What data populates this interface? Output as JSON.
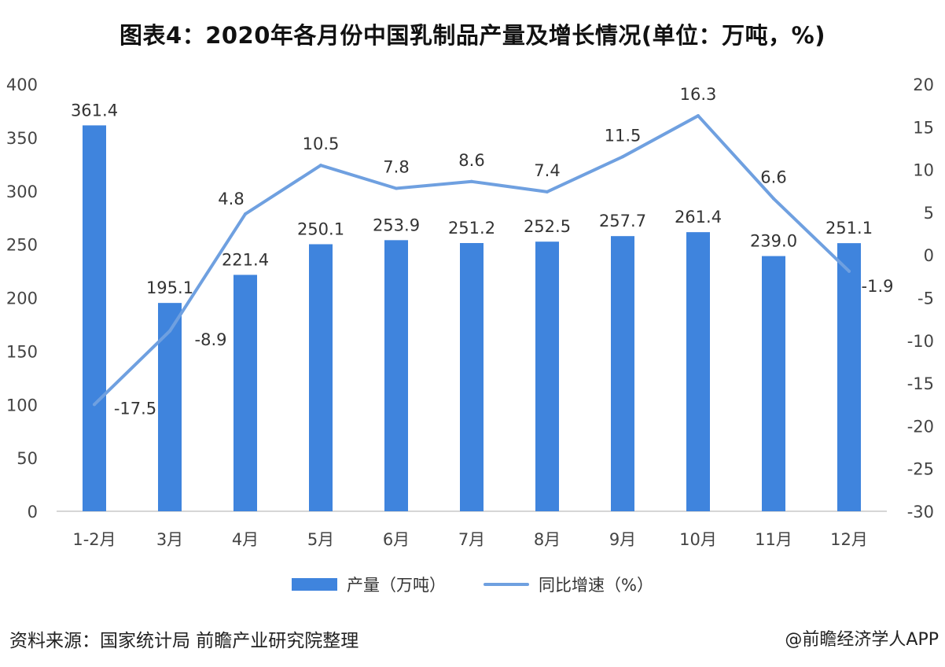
{
  "title": "图表4：2020年各月份中国乳制品产量及增长情况(单位：万吨，%)",
  "colors": {
    "bar": "#3f84dd",
    "line": "#6fa0e0",
    "axis": "#c9c9c9",
    "text": "#444444"
  },
  "chart_data": {
    "type": "bar+line",
    "categories": [
      "1-2月",
      "3月",
      "4月",
      "5月",
      "6月",
      "7月",
      "8月",
      "9月",
      "10月",
      "11月",
      "12月"
    ],
    "series": [
      {
        "name": "产量（万吨）",
        "type": "bar",
        "axis": "left",
        "values": [
          361.4,
          195.1,
          221.4,
          250.1,
          253.9,
          251.2,
          252.5,
          257.7,
          261.4,
          239.0,
          251.1
        ],
        "labels": [
          "361.4",
          "195.1",
          "221.4",
          "250.1",
          "253.9",
          "251.2",
          "252.5",
          "257.7",
          "261.4",
          "239.0",
          "251.1"
        ]
      },
      {
        "name": "同比增速（%）",
        "type": "line",
        "axis": "right",
        "values": [
          -17.5,
          -8.9,
          4.8,
          10.5,
          7.8,
          8.6,
          7.4,
          11.5,
          16.3,
          6.6,
          -1.9
        ],
        "labels": [
          "-17.5",
          "-8.9",
          "4.8",
          "10.5",
          "7.8",
          "8.6",
          "7.4",
          "11.5",
          "16.3",
          "6.6",
          "-1.9"
        ]
      }
    ],
    "y_left": {
      "min": 0,
      "max": 400,
      "step": 50,
      "ticks": [
        "0",
        "50",
        "100",
        "150",
        "200",
        "250",
        "300",
        "350",
        "400"
      ]
    },
    "y_right": {
      "min": -30,
      "max": 20,
      "step": 5,
      "ticks": [
        "-30",
        "-25",
        "-20",
        "-15",
        "-10",
        "-5",
        "0",
        "5",
        "10",
        "15",
        "20"
      ]
    },
    "legend": [
      "产量（万吨）",
      "同比增速（%）"
    ],
    "legend_position": "bottom",
    "grid": false
  },
  "footer": {
    "source": "资料来源：国家统计局 前瞻产业研究院整理",
    "credit": "@前瞻经济学人APP"
  }
}
